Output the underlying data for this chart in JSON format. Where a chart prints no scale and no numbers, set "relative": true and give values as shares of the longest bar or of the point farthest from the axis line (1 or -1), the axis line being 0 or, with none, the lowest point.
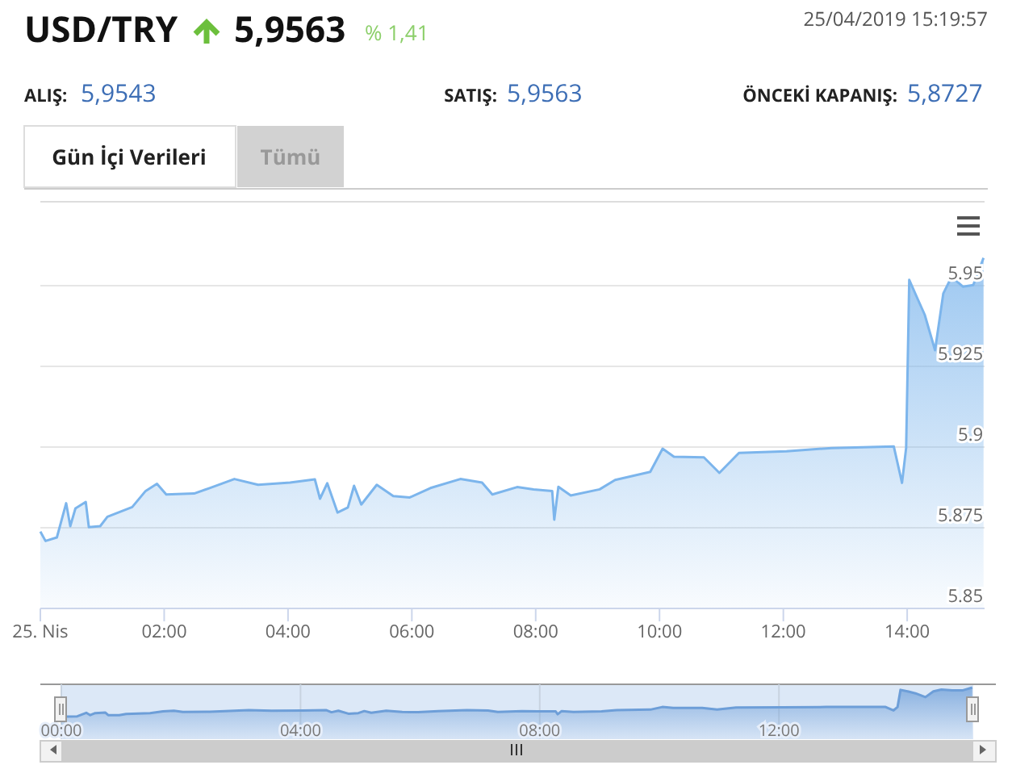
{
  "chart_data": [
    {
      "type": "area",
      "title": "USD/TRY",
      "annotations": [
        "5,9563",
        "% 1,41",
        "25/04/2019 15:19:57",
        "ALIŞ:",
        "5,9543",
        "SATIŞ:",
        "5,9563",
        "ÖNCEKİ KAPANIŞ:",
        "5,8727",
        "Gün İçi Verileri",
        "Tümü"
      ],
      "x": [
        "2019-04-25T00:00",
        "2019-04-25T00:05",
        "2019-04-25T00:16",
        "2019-04-25T00:25",
        "2019-04-25T00:29",
        "2019-04-25T00:34",
        "2019-04-25T00:44",
        "2019-04-25T00:47",
        "2019-04-25T00:58",
        "2019-04-25T01:05",
        "2019-04-25T01:29",
        "2019-04-25T01:42",
        "2019-04-25T01:53",
        "2019-04-25T02:02",
        "2019-04-25T02:29",
        "2019-04-25T02:44",
        "2019-04-25T03:08",
        "2019-04-25T03:31",
        "2019-04-25T04:02",
        "2019-04-25T04:26",
        "2019-04-25T04:31",
        "2019-04-25T04:38",
        "2019-04-25T04:48",
        "2019-04-25T04:58",
        "2019-04-25T05:04",
        "2019-04-25T05:11",
        "2019-04-25T05:26",
        "2019-04-25T05:42",
        "2019-04-25T05:58",
        "2019-04-25T06:18",
        "2019-04-25T06:47",
        "2019-04-25T07:08",
        "2019-04-25T07:18",
        "2019-04-25T07:42",
        "2019-04-25T07:58",
        "2019-04-25T08:16",
        "2019-04-25T08:18",
        "2019-04-25T08:22",
        "2019-04-25T08:34",
        "2019-04-25T09:02",
        "2019-04-25T09:17",
        "2019-04-25T09:51",
        "2019-04-25T10:03",
        "2019-04-25T10:14",
        "2019-04-25T10:43",
        "2019-04-25T10:58",
        "2019-04-25T11:17",
        "2019-04-25T12:03",
        "2019-04-25T12:47",
        "2019-04-25T13:47",
        "2019-04-25T13:55",
        "2019-04-25T13:59",
        "2019-04-25T14:02",
        "2019-04-25T14:10",
        "2019-04-25T14:17",
        "2019-04-25T14:27",
        "2019-04-25T14:35",
        "2019-04-25T14:43",
        "2019-04-25T14:54",
        "2019-04-25T15:04",
        "2019-04-25T15:14"
      ],
      "series": [
        {
          "color": "#7cb5ec",
          "values": [
            5.8738,
            5.8709,
            5.872,
            5.8826,
            5.8755,
            5.881,
            5.883,
            5.8752,
            5.8755,
            5.8784,
            5.8814,
            5.8864,
            5.8886,
            5.8853,
            5.8856,
            5.8873,
            5.8901,
            5.8883,
            5.889,
            5.89,
            5.884,
            5.8888,
            5.8797,
            5.8813,
            5.888,
            5.8822,
            5.8883,
            5.8848,
            5.8844,
            5.8873,
            5.8901,
            5.889,
            5.8853,
            5.8876,
            5.8869,
            5.8864,
            5.8775,
            5.8877,
            5.885,
            5.8869,
            5.8898,
            5.8923,
            5.8995,
            5.897,
            5.8968,
            5.892,
            5.8982,
            5.8987,
            5.8997,
            5.9002,
            5.8889,
            5.8998,
            5.9518,
            5.946,
            5.941,
            5.93,
            5.9476,
            5.9527,
            5.9497,
            5.9502,
            5.9586
          ]
        }
      ],
      "xlim": [
        "2019-04-25T00:00",
        "2019-04-25T15:15"
      ],
      "ylim": [
        5.85,
        5.976
      ],
      "xticks": [
        {
          "value": "2019-04-25T00:00",
          "label": "25. Nis"
        },
        {
          "value": "2019-04-25T02:00",
          "label": "02:00"
        },
        {
          "value": "2019-04-25T04:00",
          "label": "04:00"
        },
        {
          "value": "2019-04-25T06:00",
          "label": "06:00"
        },
        {
          "value": "2019-04-25T08:00",
          "label": "08:00"
        },
        {
          "value": "2019-04-25T10:00",
          "label": "10:00"
        },
        {
          "value": "2019-04-25T12:00",
          "label": "12:00"
        },
        {
          "value": "2019-04-25T14:00",
          "label": "14:00"
        }
      ],
      "yticks": [
        5.85,
        5.875,
        5.9,
        5.925,
        5.95
      ],
      "grid": "y"
    },
    {
      "type": "area",
      "tick_labels": "x",
      "relative": true,
      "x": [
        "2019-04-25T00:00",
        "2019-04-25T00:05",
        "2019-04-25T00:16",
        "2019-04-25T00:25",
        "2019-04-25T00:29",
        "2019-04-25T00:34",
        "2019-04-25T00:44",
        "2019-04-25T00:47",
        "2019-04-25T00:58",
        "2019-04-25T01:05",
        "2019-04-25T01:29",
        "2019-04-25T01:42",
        "2019-04-25T01:53",
        "2019-04-25T02:02",
        "2019-04-25T02:29",
        "2019-04-25T02:44",
        "2019-04-25T03:08",
        "2019-04-25T03:31",
        "2019-04-25T04:02",
        "2019-04-25T04:26",
        "2019-04-25T04:31",
        "2019-04-25T04:38",
        "2019-04-25T04:48",
        "2019-04-25T04:58",
        "2019-04-25T05:04",
        "2019-04-25T05:11",
        "2019-04-25T05:26",
        "2019-04-25T05:42",
        "2019-04-25T05:58",
        "2019-04-25T06:18",
        "2019-04-25T06:47",
        "2019-04-25T07:08",
        "2019-04-25T07:18",
        "2019-04-25T07:42",
        "2019-04-25T07:58",
        "2019-04-25T08:16",
        "2019-04-25T08:18",
        "2019-04-25T08:22",
        "2019-04-25T08:34",
        "2019-04-25T09:02",
        "2019-04-25T09:17",
        "2019-04-25T09:51",
        "2019-04-25T10:03",
        "2019-04-25T10:14",
        "2019-04-25T10:43",
        "2019-04-25T10:58",
        "2019-04-25T11:17",
        "2019-04-25T12:03",
        "2019-04-25T12:47",
        "2019-04-25T13:47",
        "2019-04-25T13:55",
        "2019-04-25T13:59",
        "2019-04-25T14:02",
        "2019-04-25T14:10",
        "2019-04-25T14:17",
        "2019-04-25T14:27",
        "2019-04-25T14:35",
        "2019-04-25T14:43",
        "2019-04-25T14:54",
        "2019-04-25T15:04",
        "2019-04-25T15:14"
      ],
      "series": [
        {
          "color": "#6d9ed8",
          "values": [
            0.03,
            0,
            0.01,
            0.13,
            0.05,
            0.12,
            0.14,
            0.05,
            0.05,
            0.09,
            0.12,
            0.18,
            0.2,
            0.16,
            0.17,
            0.19,
            0.22,
            0.2,
            0.21,
            0.22,
            0.15,
            0.2,
            0.1,
            0.12,
            0.19,
            0.13,
            0.2,
            0.16,
            0.15,
            0.19,
            0.22,
            0.21,
            0.16,
            0.19,
            0.18,
            0.18,
            0.08,
            0.19,
            0.16,
            0.18,
            0.22,
            0.24,
            0.33,
            0.3,
            0.3,
            0.24,
            0.31,
            0.32,
            0.33,
            0.33,
            0.21,
            0.33,
            0.92,
            0.86,
            0.8,
            0.67,
            0.87,
            0.93,
            0.9,
            0.9,
            1
          ]
        }
      ],
      "xlim": [
        "2019-04-25T00:00",
        "2019-04-25T15:15"
      ],
      "xticks": [
        {
          "value": "2019-04-25T00:00",
          "label": "00:00"
        },
        {
          "value": "2019-04-25T04:00",
          "label": "04:00"
        },
        {
          "value": "2019-04-25T08:00",
          "label": "08:00"
        },
        {
          "value": "2019-04-25T12:00",
          "label": "12:00"
        }
      ],
      "grid": "x"
    }
  ]
}
